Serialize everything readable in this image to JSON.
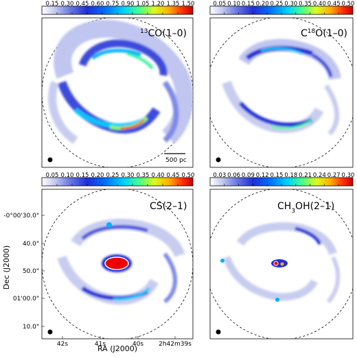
{
  "colormap": [
    "#ffffff",
    "#c8cdf0",
    "#7f8ae6",
    "#1f2fd6",
    "#0060ff",
    "#00c8ff",
    "#40ff90",
    "#d8ff20",
    "#ffb000",
    "#ff3000",
    "#c80000"
  ],
  "panels": [
    {
      "id": "13co",
      "label_sup": "13",
      "label_main": "CO(1–0)",
      "colorbar_ticks": [
        "0.15",
        "0.30",
        "0.45",
        "0.60",
        "0.75",
        "0.90",
        "1.05",
        "1.20",
        "1.35",
        "1.50"
      ],
      "scalebar_label": "500 pc"
    },
    {
      "id": "c18o",
      "label_pre": "C",
      "label_sup": "18",
      "label_main": "O(1–0)",
      "colorbar_ticks": [
        "0.05",
        "0.10",
        "0.15",
        "0.20",
        "0.25",
        "0.30",
        "0.35",
        "0.40",
        "0.45",
        "0.50"
      ]
    },
    {
      "id": "cs",
      "label_main": "CS(2–1)",
      "colorbar_ticks": [
        "0.05",
        "0.10",
        "0.15",
        "0.20",
        "0.25",
        "0.30",
        "0.35",
        "0.40",
        "0.45",
        "0.50"
      ]
    },
    {
      "id": "ch3oh",
      "label_pre": "CH",
      "label_sub": "3",
      "label_main": "OH(2–1)",
      "colorbar_ticks": [
        "0.03",
        "0.06",
        "0.09",
        "0.12",
        "0.15",
        "0.18",
        "0.21",
        "0.24",
        "0.27",
        "0.30"
      ]
    }
  ],
  "axes": {
    "ylabel": "Dec (J2000)",
    "xlabel": "RA (J2000)",
    "dec_ticks": [
      "-0°00'30.0\"",
      "40.0\"",
      "50.0\"",
      "01'00.0\"",
      "10.0\""
    ],
    "ra_ticks": [
      "42s",
      "41s",
      "40s",
      "2h42m39s"
    ]
  }
}
